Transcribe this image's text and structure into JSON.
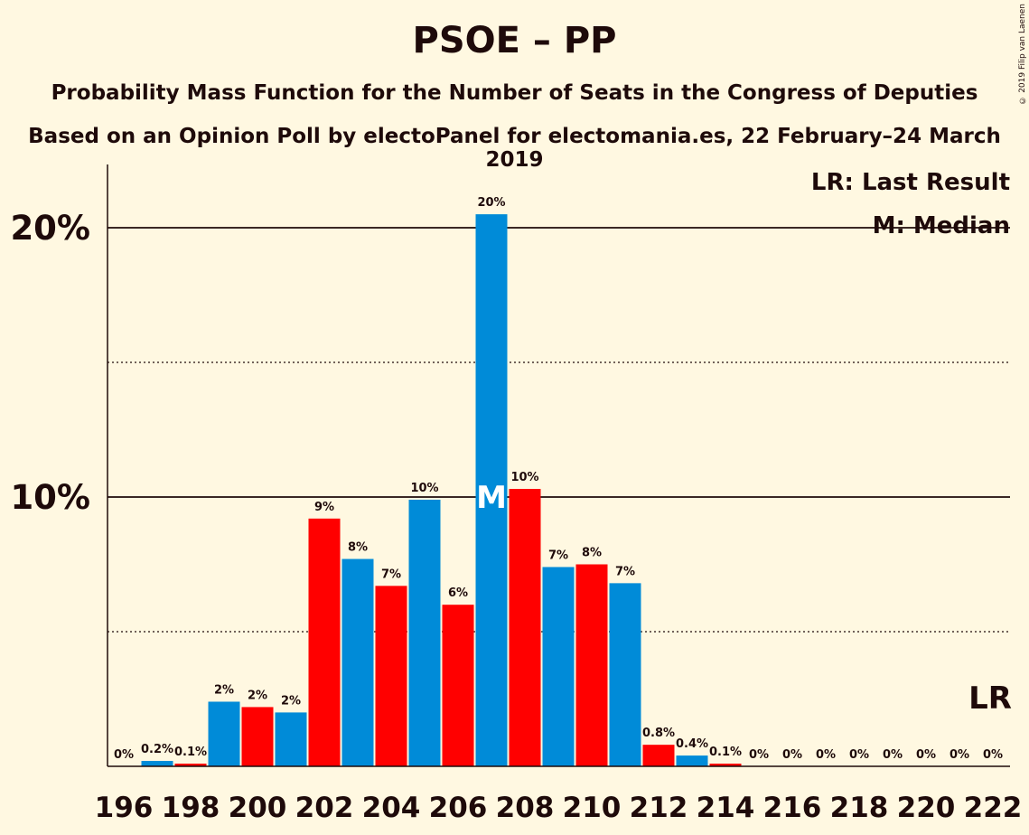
{
  "header": {
    "title": "PSOE – PP",
    "subtitle": "Probability Mass Function for the Number of Seats in the Congress of Deputies",
    "source": "Based on an Opinion Poll by electoPanel for electomania.es, 22 February–24 March 2019",
    "copyright": "© 2019 Filip van Laenen"
  },
  "legend": {
    "last_result": "LR: Last Result",
    "median": "M: Median"
  },
  "colors": {
    "background": "#fff8e1",
    "blue": "#008bd8",
    "red": "#ff0000",
    "text": "#1e0a0a"
  },
  "chart_data": {
    "type": "bar",
    "x": [
      196,
      197,
      198,
      199,
      200,
      201,
      202,
      203,
      204,
      205,
      206,
      207,
      208,
      209,
      210,
      211,
      212,
      213,
      214,
      215,
      216,
      217,
      218,
      219,
      220,
      221,
      222
    ],
    "values": [
      0.0,
      0.2,
      0.1,
      2.4,
      2.2,
      2.0,
      9.2,
      7.7,
      6.7,
      9.9,
      6.0,
      20.5,
      10.3,
      7.4,
      7.5,
      6.8,
      0.8,
      0.4,
      0.1,
      0,
      0,
      0,
      0,
      0,
      0,
      0,
      0
    ],
    "labels": [
      "0%",
      "0.2%",
      "0.1%",
      "2%",
      "2%",
      "2%",
      "9%",
      "8%",
      "7%",
      "10%",
      "6%",
      "20%",
      "10%",
      "7%",
      "8%",
      "7%",
      "0.8%",
      "0.4%",
      "0.1%",
      "0%",
      "0%",
      "0%",
      "0%",
      "0%",
      "0%",
      "0%",
      "0%"
    ],
    "colors": [
      "blue",
      "blue",
      "red",
      "blue",
      "red",
      "blue",
      "red",
      "blue",
      "red",
      "blue",
      "red",
      "blue",
      "red",
      "blue",
      "red",
      "blue",
      "red",
      "blue",
      "red",
      "blue",
      "red",
      "blue",
      "red",
      "blue",
      "red",
      "blue",
      "red"
    ],
    "x_tick_labels": [
      "196",
      "198",
      "200",
      "202",
      "204",
      "206",
      "208",
      "210",
      "212",
      "214",
      "216",
      "218",
      "220",
      "222"
    ],
    "y_tick_labels": [
      "10%",
      "20%"
    ],
    "ylim": [
      0,
      22.5
    ],
    "median": 207,
    "median_label": "M",
    "last_result": 222,
    "last_result_label": "LR",
    "grid": "solid at 10% and 20%, dotted at 5% and 15%"
  }
}
